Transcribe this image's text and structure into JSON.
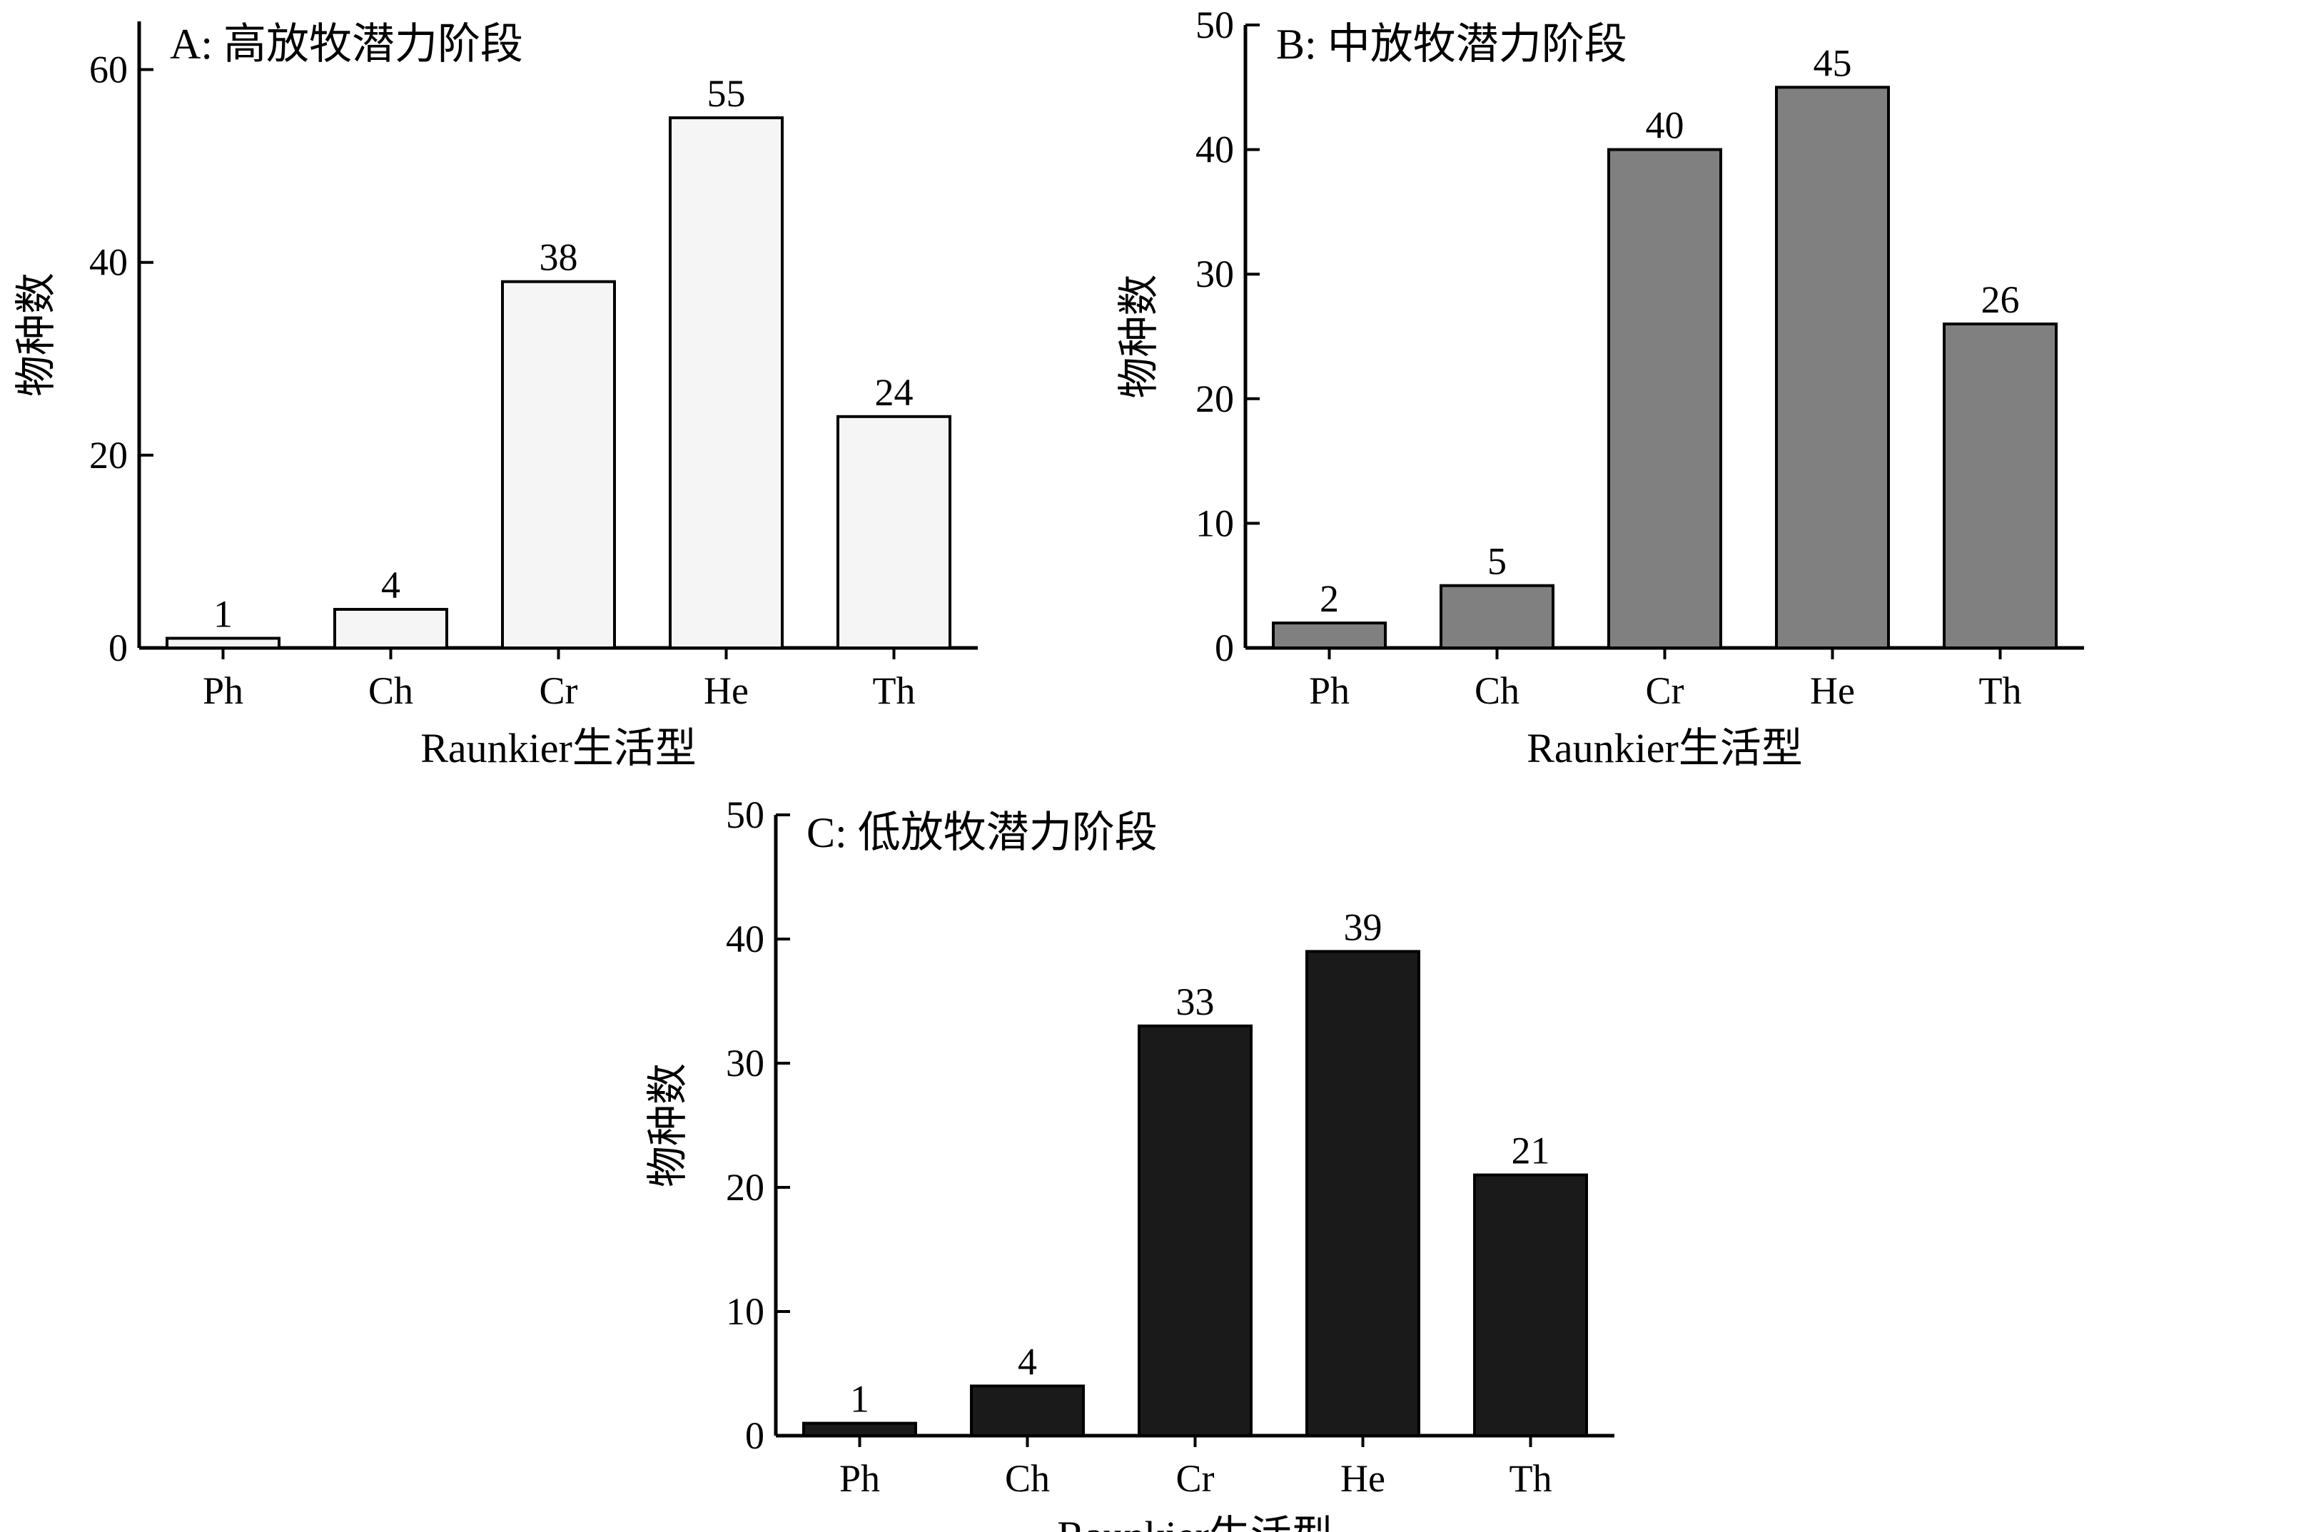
{
  "chart_data": [
    {
      "type": "bar",
      "title": "A: 高放牧潜力阶段",
      "xlabel": "Raunkier生活型",
      "ylabel": "物种数",
      "categories": [
        "Ph",
        "Ch",
        "Cr",
        "He",
        "Th"
      ],
      "values": [
        1,
        4,
        38,
        55,
        24
      ],
      "ylim": [
        0,
        65
      ],
      "yticks": [
        0,
        20,
        40,
        60
      ],
      "colors": {
        "bar_fill": "#f5f5f5",
        "bar_stroke": "#000000"
      },
      "grid": false
    },
    {
      "type": "bar",
      "title": "B: 中放牧潜力阶段",
      "xlabel": "Raunkier生活型",
      "ylabel": "物种数",
      "categories": [
        "Ph",
        "Ch",
        "Cr",
        "He",
        "Th"
      ],
      "values": [
        2,
        5,
        40,
        45,
        26
      ],
      "ylim": [
        0,
        50
      ],
      "yticks": [
        0,
        10,
        20,
        30,
        40,
        50
      ],
      "colors": {
        "bar_fill": "#808080",
        "bar_stroke": "#000000"
      },
      "grid": false
    },
    {
      "type": "bar",
      "title": "C: 低放牧潜力阶段",
      "xlabel": "Raunkier生活型",
      "ylabel": "物种数",
      "categories": [
        "Ph",
        "Ch",
        "Cr",
        "He",
        "Th"
      ],
      "values": [
        1,
        4,
        33,
        39,
        21
      ],
      "ylim": [
        0,
        50
      ],
      "yticks": [
        0,
        10,
        20,
        30,
        40,
        50
      ],
      "colors": {
        "bar_fill": "#1a1a1a",
        "bar_stroke": "#000000"
      },
      "grid": false
    }
  ]
}
